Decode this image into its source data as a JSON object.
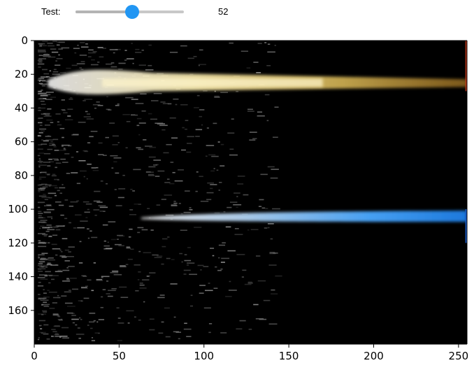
{
  "slider": {
    "label": "Test:",
    "value": 52,
    "min": 0,
    "max": 100,
    "readout": "52",
    "accent_color": "#2196f3"
  },
  "chart_data": {
    "type": "heatmap",
    "title": "",
    "xlabel": "",
    "ylabel": "",
    "xlim": [
      0,
      255
    ],
    "ylim": [
      180,
      0
    ],
    "x_ticks": [
      "0",
      "50",
      "100",
      "150",
      "200",
      "250"
    ],
    "y_ticks": [
      "0",
      "20",
      "40",
      "60",
      "80",
      "100",
      "120",
      "140",
      "160"
    ],
    "x_tick_values": [
      0,
      50,
      100,
      150,
      200,
      250
    ],
    "y_tick_values": [
      0,
      20,
      40,
      60,
      80,
      100,
      120,
      140,
      160
    ],
    "grid": false,
    "legend": "none",
    "background_color": "#000000",
    "features": [
      {
        "name": "yellow-band",
        "row_center": 25,
        "x_start": 0,
        "x_end": 255,
        "color": "#ffe680"
      },
      {
        "name": "blue-band",
        "row_center": 105,
        "x_start": 63,
        "x_end": 255,
        "color": "#3399ff"
      }
    ]
  }
}
